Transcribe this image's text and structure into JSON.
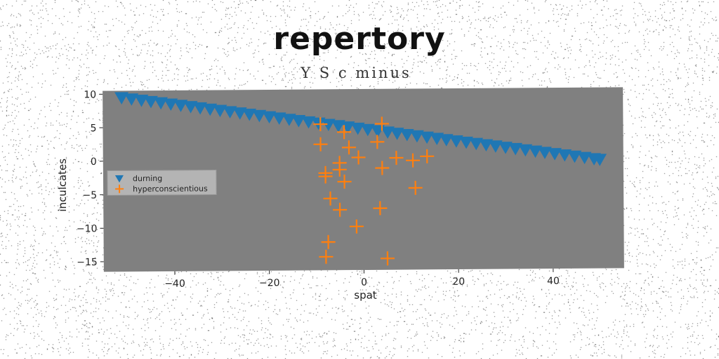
{
  "chart_data": {
    "type": "scatter",
    "title": "repertory",
    "subtitle": "Y S c minus",
    "xlabel": "spat",
    "ylabel": "inculcates",
    "xlim": [
      -55,
      55
    ],
    "ylim": [
      -16.5,
      10.5
    ],
    "xticks": [
      -40,
      -20,
      0,
      20,
      40
    ],
    "yticks": [
      10,
      5,
      0,
      -5,
      -10,
      -15
    ],
    "background": "#808080",
    "grid": false,
    "legend_position": "center-left",
    "series": [
      {
        "name": "durning",
        "marker": "triangle-down",
        "color": "#1f77b4",
        "x": [
          -51,
          -48.9,
          -46.8,
          -44.8,
          -42.7,
          -40.6,
          -38.5,
          -36.4,
          -34.4,
          -32.3,
          -30.2,
          -28.1,
          -26.0,
          -24.0,
          -21.9,
          -19.8,
          -17.7,
          -15.6,
          -13.6,
          -11.5,
          -9.4,
          -7.3,
          -5.2,
          -3.2,
          -1.1,
          1.0,
          3.1,
          5.2,
          7.2,
          9.3,
          11.4,
          13.5,
          15.6,
          17.6,
          19.7,
          21.8,
          23.9,
          26.0,
          28.0,
          30.1,
          32.2,
          34.3,
          36.4,
          38.4,
          40.5,
          42.6,
          44.7,
          46.8,
          48.8,
          50.0
        ],
        "y": [
          9.5,
          9.3,
          9.1,
          8.9,
          8.7,
          8.5,
          8.3,
          8.1,
          7.9,
          7.7,
          7.5,
          7.3,
          7.1,
          6.9,
          6.7,
          6.5,
          6.3,
          6.1,
          5.9,
          5.7,
          5.5,
          5.3,
          5.1,
          4.9,
          4.7,
          4.5,
          4.3,
          4.1,
          3.9,
          3.7,
          3.5,
          3.3,
          3.1,
          2.9,
          2.7,
          2.5,
          2.3,
          2.1,
          1.9,
          1.7,
          1.5,
          1.3,
          1.1,
          0.9,
          0.7,
          0.5,
          0.3,
          0.1,
          -0.1,
          -0.2
        ]
      },
      {
        "name": "hyperconscientious",
        "marker": "plus",
        "color": "#ff7f0e",
        "x": [
          -9,
          4,
          -4,
          -9,
          -3,
          3,
          -5,
          -1,
          -8,
          -8,
          7,
          10.5,
          13.5,
          -5,
          4,
          -4,
          11,
          -7,
          -5,
          3.5,
          -1.5,
          -8,
          -7.5,
          5
        ],
        "y": [
          5.3,
          5.3,
          4.1,
          2.3,
          1.8,
          2.6,
          -0.5,
          0.3,
          -2.0,
          -2.5,
          0.2,
          -0.2,
          0.4,
          -1.5,
          -1.3,
          -3.3,
          -4.3,
          -5.8,
          -7.5,
          -7.3,
          -10.0,
          -14.5,
          -12.3,
          -14.8
        ]
      }
    ]
  }
}
